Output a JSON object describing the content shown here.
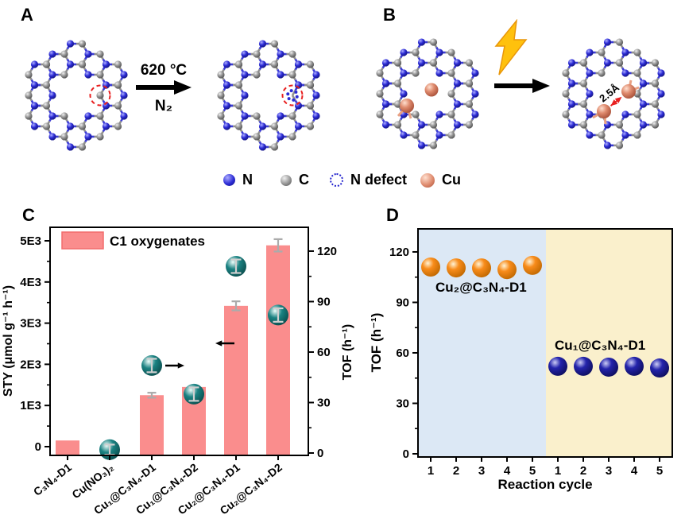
{
  "colors": {
    "nitrogen": "#2B2BD5",
    "carbon": "#949494",
    "copper": "#DF8B6E",
    "bond_n": "#3B3BD6",
    "bond_c": "#8F8F8F",
    "cu_bond": "#E9A183",
    "defect_red": "#E82020",
    "lightning_gold": "#FFC10D",
    "bar_error_gray": "#ABABAB",
    "sphere_error_gray": "#CFCFCF"
  },
  "figure": {
    "panels": {
      "a": {
        "label": "A",
        "condition_top": "620 °C",
        "condition_bottom": "N₂"
      },
      "b": {
        "label": "B",
        "distance_label": "2.5Å"
      },
      "c": {
        "label": "C"
      },
      "d": {
        "label": "D"
      }
    },
    "atom_legend": [
      {
        "name": "N",
        "glyph": "sphere",
        "color": "#2B2BD5"
      },
      {
        "name": "C",
        "glyph": "sphere",
        "color": "#949494"
      },
      {
        "name": "N defect",
        "glyph": "dotted-circle",
        "color": "#2323CD"
      },
      {
        "name": "Cu",
        "glyph": "sphere",
        "color": "#DF8B6E"
      }
    ]
  },
  "chart_data": [
    {
      "panel": "C",
      "type": "bar",
      "categories": [
        "C₃N₄-D1",
        "Cu(NO₃)₂",
        "Cu₁@C₃N₄-D1",
        "Cu₁@C₃N₄-D2",
        "Cu₂@C₃N₄-D1",
        "Cu₂@C₃N₄-D2"
      ],
      "legend": {
        "label": "C1 oxygenates"
      },
      "series": [
        {
          "name": "C1 oxygenates",
          "type": "bar",
          "axis": "left",
          "color": "#FA8D8D",
          "values": [
            150,
            null,
            1250,
            1450,
            3420,
            4890
          ],
          "errors": [
            null,
            null,
            60,
            null,
            110,
            150
          ]
        },
        {
          "name": "TOF",
          "type": "sphere",
          "axis": "right",
          "color": "#1B8282",
          "values": [
            null,
            2,
            52,
            35,
            111,
            82
          ],
          "errors": [
            null,
            3,
            4,
            4,
            4,
            4
          ]
        }
      ],
      "left_axis": {
        "label": "STY (μmol g⁻¹ h⁻¹)",
        "tick_labels": [
          "0",
          "1E3",
          "2E3",
          "3E3",
          "4E3",
          "5E3"
        ],
        "tick_values": [
          0,
          1000,
          2000,
          3000,
          4000,
          5000
        ],
        "minor_step": 500
      },
      "right_axis": {
        "label": "TOF (h⁻¹)",
        "tick_labels": [
          "0",
          "30",
          "60",
          "90",
          "120"
        ],
        "tick_values": [
          0,
          30,
          60,
          90,
          120
        ],
        "minor_step": 15
      },
      "annotations": [
        {
          "type": "arrow",
          "direction": "left"
        },
        {
          "type": "arrow",
          "direction": "right"
        }
      ]
    },
    {
      "panel": "D",
      "type": "scatter",
      "x_label": "Reaction cycle",
      "x_tick_labels": [
        "1",
        "2",
        "3",
        "4",
        "5",
        "1",
        "2",
        "3",
        "4",
        "5"
      ],
      "y_axis": {
        "label": "TOF (h⁻¹)",
        "tick_labels": [
          "0",
          "30",
          "60",
          "90",
          "120"
        ],
        "tick_values": [
          0,
          30,
          60,
          90,
          120
        ],
        "minor_step": 15
      },
      "series": [
        {
          "name": "Cu₂@C₃N₄-D1",
          "color": "#F88C1B",
          "region_color": "#DCE8F5",
          "values": [
            111,
            110.5,
            110.5,
            109.5,
            112
          ]
        },
        {
          "name": "Cu₁@C₃N₄-D1",
          "color": "#2020A8",
          "region_color": "#FAF0CC",
          "values": [
            52,
            52,
            51.5,
            52,
            51
          ]
        }
      ]
    }
  ]
}
